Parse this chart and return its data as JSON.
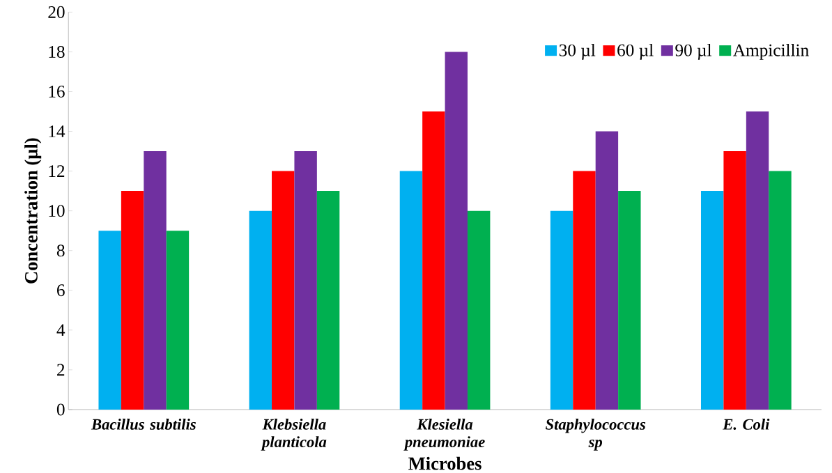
{
  "chart_data": {
    "type": "bar",
    "xlabel": "Microbes",
    "ylabel": "Concentration (µl)",
    "categories": [
      "Bacillus subtilis",
      "Klebsiella planticola",
      "Klesiella pneumoniae",
      "Staphylococcus sp",
      "E. Coli"
    ],
    "series": [
      {
        "name": "30 µl",
        "color": "#00b0f0",
        "values": [
          9,
          10,
          12,
          10,
          11
        ]
      },
      {
        "name": "60 µl",
        "color": "#ff0000",
        "values": [
          11,
          12,
          15,
          12,
          13
        ]
      },
      {
        "name": "90 µl",
        "color": "#7030a0",
        "values": [
          13,
          13,
          18,
          14,
          15
        ]
      },
      {
        "name": "Ampicillin",
        "color": "#00b050",
        "values": [
          9,
          11,
          10,
          11,
          12
        ]
      }
    ],
    "ylim": [
      0,
      20
    ],
    "yticks": [
      0,
      2,
      4,
      6,
      8,
      10,
      12,
      14,
      16,
      18,
      20
    ],
    "grid": false,
    "legend": "top right"
  }
}
